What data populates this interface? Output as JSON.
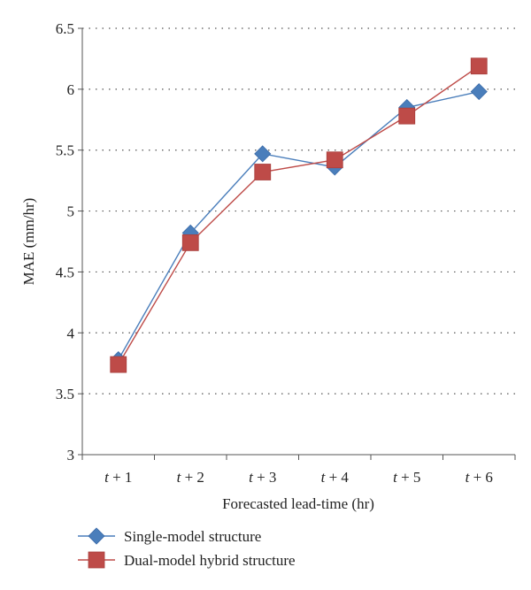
{
  "chart_data": {
    "type": "line",
    "xlabel": "Forecasted lead-time (hr)",
    "ylabel": "MAE (mm/hr)",
    "ylim": [
      3,
      6.5
    ],
    "yticks": [
      "3",
      "3.5",
      "4",
      "4.5",
      "5",
      "5.5",
      "6",
      "6.5"
    ],
    "grid": "horizontal-dotted",
    "legend_position": "bottom-left",
    "categories": [
      {
        "var": "t",
        "rest": " + 1"
      },
      {
        "var": "t",
        "rest": " + 2"
      },
      {
        "var": "t",
        "rest": " + 3"
      },
      {
        "var": "t",
        "rest": " + 4"
      },
      {
        "var": "t",
        "rest": " + 5"
      },
      {
        "var": "t",
        "rest": " + 6"
      }
    ],
    "series": [
      {
        "name": "Single-model structure",
        "marker": "diamond",
        "color": "#4a7ebb",
        "values": [
          3.78,
          4.82,
          5.47,
          5.36,
          5.85,
          5.98
        ]
      },
      {
        "name": "Dual-model hybrid structure",
        "marker": "square",
        "color": "#be4b48",
        "values": [
          3.74,
          4.74,
          5.32,
          5.42,
          5.78,
          6.19
        ]
      }
    ]
  }
}
